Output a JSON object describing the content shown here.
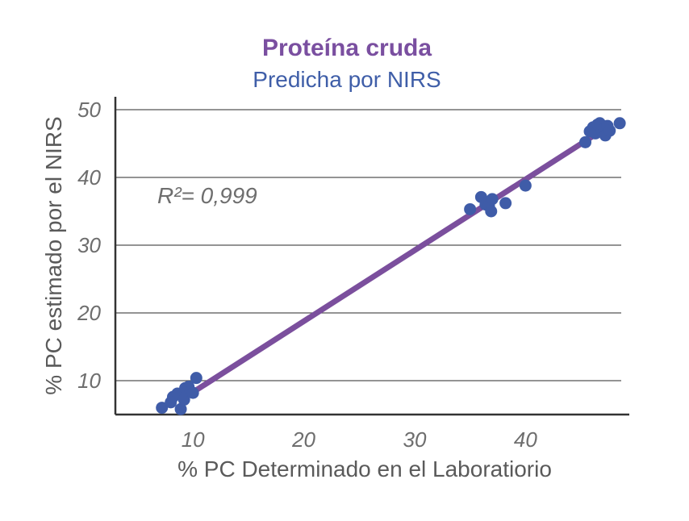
{
  "chart_data": {
    "type": "scatter",
    "title": "Proteína cruda",
    "subtitle": "Predicha por NIRS",
    "xlabel": "% PC Determinado en el Laboratiorio",
    "ylabel": "% PC estimado por el NIRS",
    "xlim": [
      3,
      49
    ],
    "ylim": [
      5,
      50
    ],
    "xticks": [
      10,
      20,
      30,
      40
    ],
    "yticks": [
      10,
      20,
      30,
      40,
      50
    ],
    "grid": "horizontal",
    "annotation": "R²= 0,999",
    "colors": {
      "title": "#7a4fa0",
      "subtitle": "#3f5ea8",
      "points": "#3f5ca8",
      "fit_line": "#7b4f9d",
      "grid": "#555555",
      "axis": "#333333"
    },
    "series": [
      {
        "points": [
          [
            7.2,
            6.0
          ],
          [
            8.0,
            6.8
          ],
          [
            8.2,
            7.6
          ],
          [
            8.6,
            8.1
          ],
          [
            8.9,
            5.8
          ],
          [
            9.2,
            7.2
          ],
          [
            9.3,
            8.9
          ],
          [
            9.6,
            9.1
          ],
          [
            9.8,
            8.4
          ],
          [
            10.0,
            8.2
          ],
          [
            10.3,
            10.4
          ],
          [
            35.0,
            35.3
          ],
          [
            36.0,
            37.1
          ],
          [
            36.4,
            36.0
          ],
          [
            36.7,
            35.8
          ],
          [
            36.9,
            35.0
          ],
          [
            37.0,
            36.8
          ],
          [
            38.2,
            36.2
          ],
          [
            40.0,
            38.8
          ],
          [
            45.4,
            45.2
          ],
          [
            45.8,
            46.8
          ],
          [
            46.1,
            47.4
          ],
          [
            46.3,
            46.5
          ],
          [
            46.5,
            47.8
          ],
          [
            46.7,
            48.0
          ],
          [
            46.9,
            46.9
          ],
          [
            47.1,
            47.2
          ],
          [
            47.2,
            46.2
          ],
          [
            47.4,
            47.6
          ],
          [
            47.6,
            46.9
          ],
          [
            48.5,
            48.0
          ]
        ]
      }
    ],
    "fit_line": [
      [
        10.0,
        8.3
      ],
      [
        46.0,
        46.0
      ]
    ]
  }
}
